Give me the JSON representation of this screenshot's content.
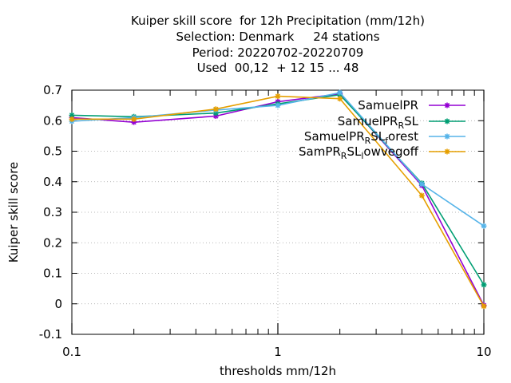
{
  "chart_data": {
    "type": "line",
    "title_lines": [
      "Kuiper skill score  for 12h Precipitation (mm/12h)",
      "Selection: Denmark     24 stations",
      "Period: 20220702-20220709",
      "Used  00,12  + 12 15 ... 48"
    ],
    "xlabel": "thresholds mm/12h",
    "ylabel": "Kuiper skill score",
    "x_scale": "log",
    "xlim": [
      0.1,
      10
    ],
    "ylim": [
      -0.1,
      0.7
    ],
    "x_ticks": [
      0.1,
      1,
      10
    ],
    "x_tick_labels": [
      "0.1",
      "1",
      "10"
    ],
    "y_ticks": [
      -0.1,
      0,
      0.1,
      0.2,
      0.3,
      0.4,
      0.5,
      0.6,
      0.7
    ],
    "y_tick_labels": [
      "-0.1",
      "0",
      "0.1",
      "0.2",
      "0.3",
      "0.4",
      "0.5",
      "0.6",
      "0.7"
    ],
    "grid": true,
    "legend_position": "top-right",
    "x": [
      0.1,
      0.2,
      0.5,
      1,
      2,
      5,
      10
    ],
    "series": [
      {
        "name": "SamuelPR",
        "color": "#9400d3",
        "values": [
          0.61,
          0.595,
          0.615,
          0.662,
          0.688,
          0.388,
          -0.005
        ]
      },
      {
        "name": "SamuelPR_R SL",
        "color": "#009e73",
        "values": [
          0.618,
          0.613,
          0.625,
          0.655,
          0.685,
          0.395,
          0.062
        ]
      },
      {
        "name": "SamuelPR_R SL_f orest",
        "color": "#56b4e9",
        "values": [
          0.598,
          0.61,
          0.635,
          0.65,
          0.692,
          0.392,
          0.255
        ]
      },
      {
        "name": "SamPR_R SL_l owvegoff",
        "color": "#e69f00",
        "values": [
          0.605,
          0.605,
          0.638,
          0.68,
          0.672,
          0.355,
          -0.008
        ]
      }
    ]
  }
}
